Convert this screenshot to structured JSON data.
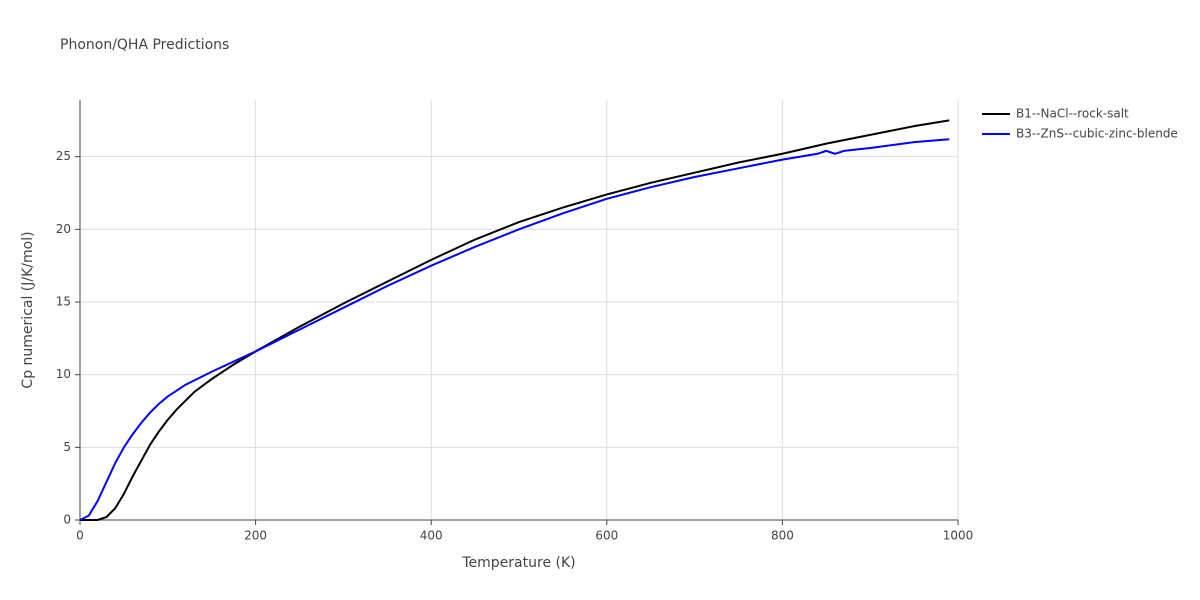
{
  "chart_data": {
    "type": "line",
    "title": "Phonon/QHA Predictions",
    "x_label": "Temperature (K)",
    "y_label": "Cp numerical (J/K/mol)",
    "xlim": [
      0,
      1000
    ],
    "xticks": [
      0,
      200,
      400,
      600,
      800,
      1000
    ],
    "ylim": [
      0,
      28.9
    ],
    "yticks": [
      0,
      5,
      10,
      15,
      20,
      25
    ],
    "grid": true,
    "legend": "top-right",
    "series": [
      {
        "name": "B1--NaCl--rock-salt",
        "color": "#000000",
        "x": [
          0,
          10,
          20,
          30,
          40,
          50,
          60,
          70,
          80,
          90,
          100,
          110,
          120,
          130,
          150,
          175,
          200,
          250,
          300,
          350,
          400,
          450,
          500,
          550,
          600,
          650,
          700,
          750,
          800,
          850,
          900,
          950,
          990
        ],
        "values": [
          0,
          0,
          0,
          0.2,
          0.8,
          1.8,
          3.0,
          4.1,
          5.2,
          6.1,
          6.9,
          7.6,
          8.2,
          8.8,
          9.7,
          10.7,
          11.6,
          13.3,
          14.9,
          16.4,
          17.9,
          19.3,
          20.5,
          21.5,
          22.4,
          23.2,
          23.9,
          24.6,
          25.2,
          25.9,
          26.5,
          27.1,
          27.5
        ]
      },
      {
        "name": "B3--ZnS--cubic-zinc-blende",
        "color": "#0000ff",
        "x": [
          0,
          10,
          20,
          30,
          40,
          50,
          60,
          70,
          80,
          90,
          100,
          110,
          120,
          130,
          150,
          175,
          200,
          250,
          300,
          350,
          400,
          450,
          500,
          550,
          600,
          650,
          700,
          750,
          800,
          840,
          850,
          860,
          870,
          900,
          950,
          990
        ],
        "values": [
          0,
          0.3,
          1.3,
          2.6,
          3.9,
          5.0,
          5.9,
          6.7,
          7.4,
          8.0,
          8.5,
          8.9,
          9.3,
          9.6,
          10.2,
          10.9,
          11.6,
          13.1,
          14.6,
          16.1,
          17.5,
          18.8,
          20.0,
          21.1,
          22.1,
          22.9,
          23.6,
          24.2,
          24.8,
          25.2,
          25.4,
          25.2,
          25.4,
          25.6,
          26.0,
          26.2
        ]
      }
    ]
  }
}
